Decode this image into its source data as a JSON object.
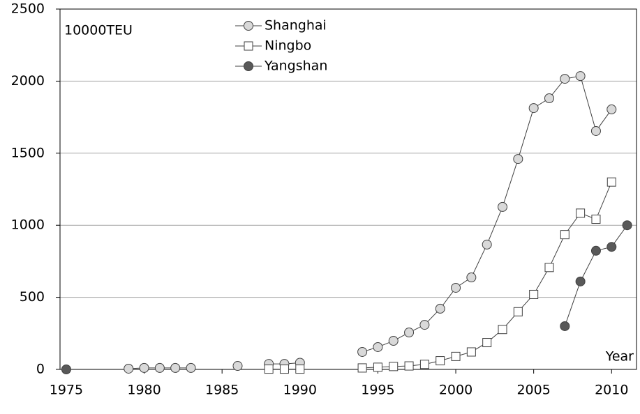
{
  "chart_data": {
    "type": "line",
    "y_label": "10000TEU",
    "x_label": "Year",
    "x": [
      1975,
      1976,
      1977,
      1978,
      1979,
      1980,
      1981,
      1982,
      1983,
      1984,
      1985,
      1986,
      1987,
      1988,
      1989,
      1990,
      1991,
      1992,
      1993,
      1994,
      1995,
      1996,
      1997,
      1998,
      1999,
      2000,
      2001,
      2002,
      2003,
      2004,
      2005,
      2006,
      2007,
      2008,
      2009,
      2010,
      2011
    ],
    "series": [
      {
        "name": "Shanghai",
        "color": "#d9d9d9",
        "marker": "circle",
        "values": [
          null,
          null,
          null,
          null,
          5,
          10,
          10,
          10,
          10,
          null,
          null,
          24,
          null,
          38,
          38,
          46,
          null,
          null,
          null,
          121,
          155,
          198,
          256,
          309,
          421,
          566,
          638,
          866,
          1127,
          1460,
          1813,
          1881,
          2016,
          2035,
          1654,
          1804,
          null
        ]
      },
      {
        "name": "Ningbo",
        "color": "#ffffff",
        "marker": "square",
        "values": [
          null,
          null,
          null,
          null,
          null,
          null,
          null,
          null,
          null,
          null,
          null,
          null,
          null,
          2,
          2,
          2,
          null,
          null,
          null,
          10,
          15,
          20,
          24,
          35,
          60,
          90,
          121,
          186,
          277,
          400,
          520,
          707,
          935,
          1084,
          1042,
          1300,
          null
        ]
      },
      {
        "name": "Yangshan",
        "color": "#595959",
        "marker": "circle",
        "values": [
          0,
          null,
          null,
          null,
          null,
          null,
          null,
          null,
          null,
          null,
          null,
          null,
          null,
          null,
          null,
          null,
          null,
          null,
          null,
          null,
          null,
          null,
          null,
          null,
          null,
          null,
          null,
          null,
          null,
          null,
          null,
          null,
          300,
          610,
          823,
          850,
          1000
        ]
      }
    ],
    "xlim": [
      1974.6,
      2011.6
    ],
    "xticks": [
      1975,
      1980,
      1985,
      1990,
      1995,
      2000,
      2005,
      2010
    ],
    "ylim": [
      0,
      2500
    ],
    "yticks": [
      0,
      500,
      1000,
      1500,
      2000,
      2500
    ],
    "grid": true,
    "legend": "top"
  }
}
